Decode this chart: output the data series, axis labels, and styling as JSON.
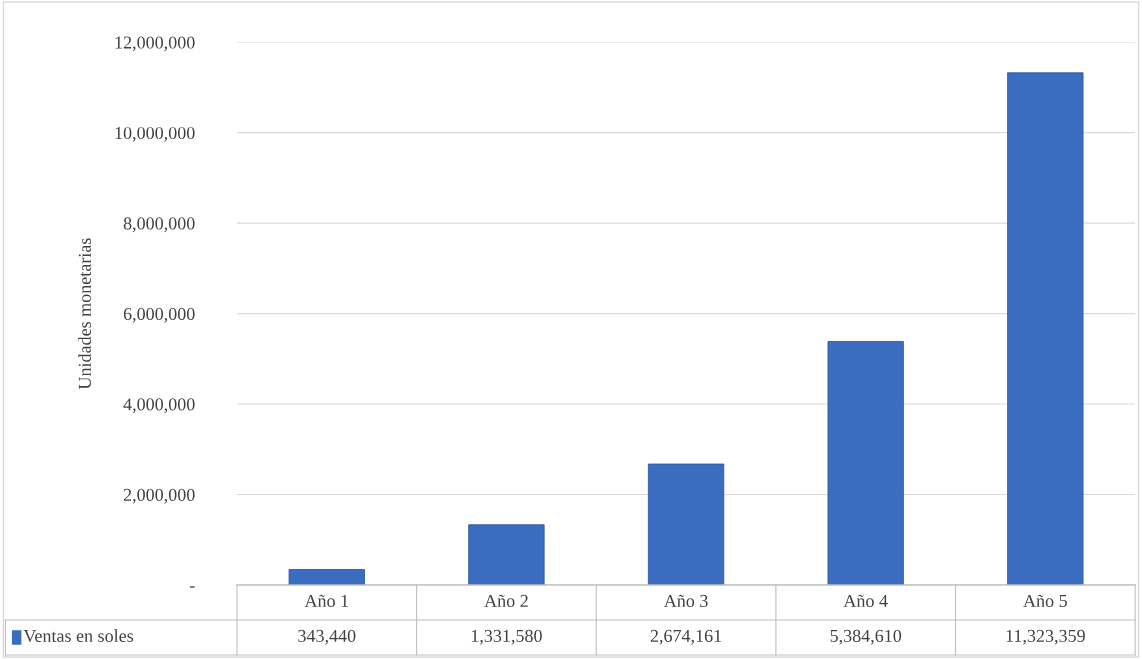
{
  "chart_data": {
    "type": "bar",
    "ylabel": "Unidades monetarias",
    "categories": [
      "Año 1",
      "Año 2",
      "Año 3",
      "Año 4",
      "Año 5"
    ],
    "series": [
      {
        "name": "Ventas en soles",
        "color": "#3a6dc0",
        "values": [
          343440,
          1331580,
          2674161,
          5384610,
          11323359
        ],
        "value_labels": [
          "343,440",
          "1,331,580",
          "2,674,161",
          "5,384,610",
          "11,323,359"
        ]
      }
    ],
    "ylim": [
      0,
      12000000
    ],
    "yticks": [
      {
        "value": 0,
        "label": "-"
      },
      {
        "value": 2000000,
        "label": "2,000,000"
      },
      {
        "value": 4000000,
        "label": "4,000,000"
      },
      {
        "value": 6000000,
        "label": "6,000,000"
      },
      {
        "value": 8000000,
        "label": "8,000,000"
      },
      {
        "value": 10000000,
        "label": "10,000,000"
      },
      {
        "value": 12000000,
        "label": "12,000,000"
      }
    ],
    "grid": "y",
    "legend": "bottom left"
  }
}
